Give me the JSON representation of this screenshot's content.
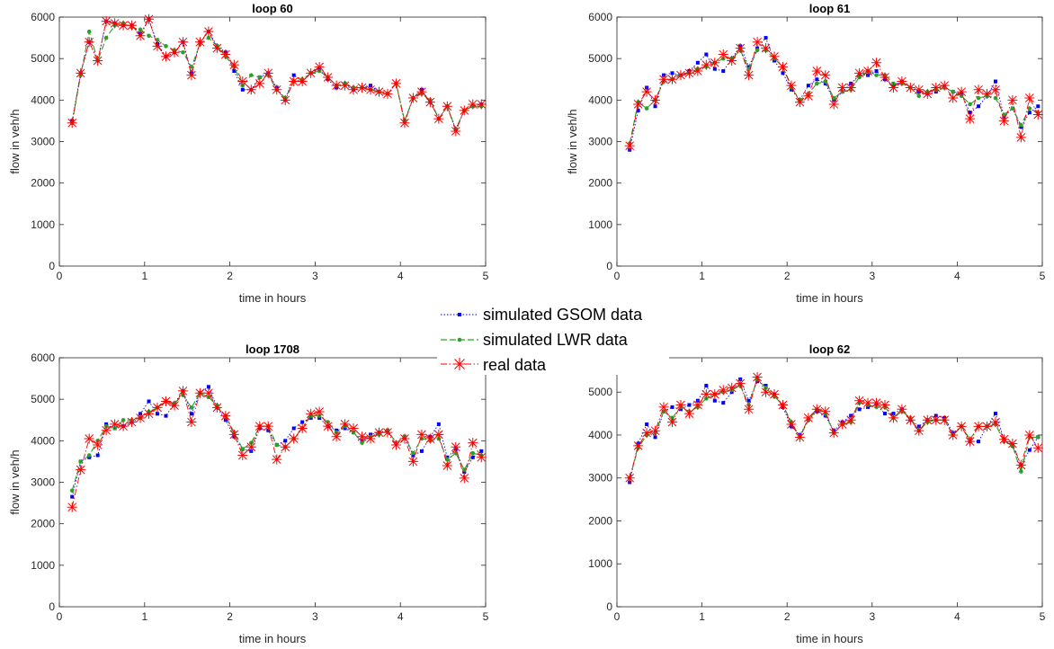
{
  "legend": {
    "entries": [
      "simulated GSOM data",
      "simulated LWR data",
      "real data"
    ]
  },
  "colors": {
    "gsom": "#0000ff",
    "lwr": "#2ca02c",
    "real": "#ff0000",
    "axis": "#262626"
  },
  "chart_data": [
    {
      "type": "line",
      "title": "loop 60",
      "xlabel": "time in hours",
      "ylabel": "flow  in veh/h",
      "xlim": [
        0,
        5
      ],
      "ylim": [
        0,
        6000
      ],
      "xticks": [
        "0",
        "1",
        "2",
        "3",
        "4",
        "5"
      ],
      "yticks": [
        "0",
        "1000",
        "2000",
        "3000",
        "4000",
        "5000",
        "6000"
      ],
      "x": [
        0.15,
        0.25,
        0.35,
        0.45,
        0.55,
        0.65,
        0.75,
        0.85,
        0.95,
        1.05,
        1.15,
        1.25,
        1.35,
        1.45,
        1.55,
        1.65,
        1.75,
        1.85,
        1.95,
        2.05,
        2.15,
        2.25,
        2.35,
        2.45,
        2.55,
        2.65,
        2.75,
        2.85,
        2.95,
        3.05,
        3.15,
        3.25,
        3.35,
        3.45,
        3.55,
        3.65,
        3.75,
        3.85,
        3.95,
        4.05,
        4.15,
        4.25,
        4.35,
        4.45,
        4.55,
        4.65,
        4.75,
        4.85,
        4.95
      ],
      "series": [
        {
          "name": "simulated GSOM data",
          "values": [
            3500,
            4650,
            5400,
            4950,
            5900,
            5850,
            5800,
            5800,
            5600,
            5950,
            5350,
            5050,
            5150,
            5400,
            4650,
            5400,
            5650,
            5300,
            5150,
            4700,
            4250,
            4250,
            4550,
            4650,
            4300,
            4000,
            4600,
            4450,
            4650,
            4750,
            4500,
            4300,
            4400,
            4250,
            4300,
            4350,
            4200,
            4150,
            4400,
            3500,
            4050,
            4250,
            3950,
            3550,
            3850,
            3300,
            3750,
            3850,
            3900
          ]
        },
        {
          "name": "simulated LWR data",
          "values": [
            3450,
            4600,
            5650,
            4950,
            5500,
            5800,
            5850,
            5750,
            5700,
            5550,
            5450,
            5300,
            5200,
            5150,
            4800,
            5350,
            5500,
            5300,
            5050,
            4800,
            4350,
            4600,
            4550,
            4600,
            4250,
            4050,
            4450,
            4500,
            4650,
            4700,
            4550,
            4350,
            4400,
            4300,
            4300,
            4250,
            4200,
            4150,
            4400,
            3500,
            4050,
            4150,
            4000,
            3550,
            3850,
            3300,
            3750,
            3850,
            3850
          ]
        },
        {
          "name": "real data",
          "values": [
            3450,
            4650,
            5400,
            4950,
            5900,
            5850,
            5800,
            5800,
            5550,
            5950,
            5300,
            5050,
            5150,
            5400,
            4600,
            5400,
            5650,
            5250,
            5100,
            4850,
            4450,
            4250,
            4400,
            4650,
            4250,
            4000,
            4450,
            4450,
            4650,
            4800,
            4550,
            4350,
            4350,
            4250,
            4300,
            4250,
            4200,
            4150,
            4400,
            3450,
            4050,
            4200,
            3950,
            3550,
            3850,
            3250,
            3750,
            3900,
            3900
          ]
        }
      ]
    },
    {
      "type": "line",
      "title": "loop 61",
      "xlabel": "time in hours",
      "ylabel": "flow  in veh/h",
      "xlim": [
        0,
        5
      ],
      "ylim": [
        0,
        6000
      ],
      "xticks": [
        "0",
        "1",
        "2",
        "3",
        "4",
        "5"
      ],
      "yticks": [
        "0",
        "1000",
        "2000",
        "3000",
        "4000",
        "5000",
        "6000"
      ],
      "x": [
        0.15,
        0.25,
        0.35,
        0.45,
        0.55,
        0.65,
        0.75,
        0.85,
        0.95,
        1.05,
        1.15,
        1.25,
        1.35,
        1.45,
        1.55,
        1.65,
        1.75,
        1.85,
        1.95,
        2.05,
        2.15,
        2.25,
        2.35,
        2.45,
        2.55,
        2.65,
        2.75,
        2.85,
        2.95,
        3.05,
        3.15,
        3.25,
        3.35,
        3.45,
        3.55,
        3.65,
        3.75,
        3.85,
        3.95,
        4.05,
        4.15,
        4.25,
        4.35,
        4.45,
        4.55,
        4.65,
        4.75,
        4.85,
        4.95
      ],
      "series": [
        {
          "name": "simulated GSOM data",
          "values": [
            2800,
            3750,
            4300,
            3850,
            4600,
            4650,
            4600,
            4700,
            4900,
            5100,
            4750,
            4700,
            5000,
            5300,
            4800,
            5250,
            5500,
            4950,
            4650,
            4250,
            4000,
            4350,
            4500,
            4400,
            4000,
            4200,
            4400,
            4600,
            4600,
            4700,
            4500,
            4350,
            4450,
            4300,
            4200,
            4150,
            4200,
            4300,
            4200,
            4150,
            3700,
            3850,
            4100,
            4450,
            3600,
            3800,
            3350,
            3700,
            3850
          ]
        },
        {
          "name": "simulated LWR data",
          "values": [
            2950,
            3950,
            3800,
            4000,
            4450,
            4500,
            4600,
            4650,
            4750,
            4800,
            4900,
            5000,
            5000,
            5200,
            4750,
            5200,
            5200,
            5000,
            4800,
            4300,
            4000,
            4150,
            4400,
            4450,
            4050,
            4200,
            4250,
            4550,
            4700,
            4600,
            4600,
            4400,
            4400,
            4300,
            4100,
            4200,
            4250,
            4300,
            4200,
            4100,
            3900,
            4050,
            4100,
            4050,
            3650,
            3800,
            3400,
            3800,
            3700
          ]
        },
        {
          "name": "real data",
          "values": [
            2900,
            3900,
            4200,
            4000,
            4500,
            4500,
            4600,
            4650,
            4700,
            4850,
            4900,
            5100,
            4950,
            5250,
            4600,
            5400,
            5250,
            5050,
            4800,
            4350,
            3950,
            4100,
            4700,
            4600,
            3900,
            4300,
            4300,
            4650,
            4700,
            4900,
            4550,
            4300,
            4450,
            4300,
            4250,
            4150,
            4300,
            4350,
            4050,
            4200,
            3550,
            4250,
            4150,
            4250,
            3500,
            4000,
            3100,
            4050,
            3650
          ]
        }
      ]
    },
    {
      "type": "line",
      "title": "loop 1708",
      "xlabel": "time in hours",
      "ylabel": "flow  in veh/h",
      "xlim": [
        0,
        5
      ],
      "ylim": [
        0,
        6000
      ],
      "xticks": [
        "0",
        "1",
        "2",
        "3",
        "4",
        "5"
      ],
      "yticks": [
        "0",
        "1000",
        "2000",
        "3000",
        "4000",
        "5000",
        "6000"
      ],
      "x": [
        0.15,
        0.25,
        0.35,
        0.45,
        0.55,
        0.65,
        0.75,
        0.85,
        0.95,
        1.05,
        1.15,
        1.25,
        1.35,
        1.45,
        1.55,
        1.65,
        1.75,
        1.85,
        1.95,
        2.05,
        2.15,
        2.25,
        2.35,
        2.45,
        2.55,
        2.65,
        2.75,
        2.85,
        2.95,
        3.05,
        3.15,
        3.25,
        3.35,
        3.45,
        3.55,
        3.65,
        3.75,
        3.85,
        3.95,
        4.05,
        4.15,
        4.25,
        4.35,
        4.45,
        4.55,
        4.65,
        4.75,
        4.85,
        4.95
      ],
      "series": [
        {
          "name": "simulated GSOM data",
          "values": [
            2650,
            3500,
            3600,
            3650,
            4400,
            4300,
            4350,
            4450,
            4650,
            4950,
            4650,
            4600,
            4900,
            5200,
            4650,
            5150,
            5300,
            4800,
            4500,
            4100,
            3800,
            3750,
            4300,
            4250,
            3900,
            4000,
            4300,
            4450,
            4550,
            4550,
            4350,
            4250,
            4300,
            4200,
            4000,
            4150,
            4200,
            4250,
            3950,
            4100,
            3650,
            3750,
            4100,
            4400,
            3600,
            3800,
            3250,
            3600,
            3750
          ]
        },
        {
          "name": "simulated LWR data",
          "values": [
            2800,
            3500,
            3650,
            4000,
            4350,
            4300,
            4500,
            4500,
            4550,
            4700,
            4800,
            4950,
            4900,
            5100,
            4800,
            5150,
            5050,
            4850,
            4600,
            4200,
            3800,
            3950,
            4350,
            4350,
            3900,
            3850,
            4050,
            4300,
            4600,
            4600,
            4450,
            4200,
            4350,
            4200,
            3950,
            4100,
            4150,
            4250,
            3950,
            4100,
            3700,
            4050,
            4000,
            4050,
            3550,
            3700,
            3300,
            3700,
            3650
          ]
        },
        {
          "name": "real data",
          "values": [
            2400,
            3300,
            4050,
            3900,
            4250,
            4400,
            4350,
            4450,
            4550,
            4650,
            4800,
            4950,
            4850,
            5200,
            4450,
            5150,
            5150,
            4800,
            4600,
            4150,
            3650,
            3850,
            4350,
            4350,
            3550,
            3850,
            4050,
            4300,
            4650,
            4700,
            4350,
            4100,
            4400,
            4300,
            4100,
            4050,
            4200,
            4200,
            3900,
            4050,
            3500,
            4150,
            4050,
            4150,
            3400,
            3850,
            3100,
            3950,
            3600
          ]
        }
      ]
    },
    {
      "type": "line",
      "title": "loop 62",
      "xlabel": "time in hours",
      "ylabel": "",
      "xlim": [
        0,
        5
      ],
      "ylim": [
        0,
        5800
      ],
      "xticks": [
        "0",
        "1",
        "2",
        "3",
        "4",
        "5"
      ],
      "yticks": [
        "0",
        "1000",
        "2000",
        "3000",
        "4000",
        "5000"
      ],
      "x": [
        0.15,
        0.25,
        0.35,
        0.45,
        0.55,
        0.65,
        0.75,
        0.85,
        0.95,
        1.05,
        1.15,
        1.25,
        1.35,
        1.45,
        1.55,
        1.65,
        1.75,
        1.85,
        1.95,
        2.05,
        2.15,
        2.25,
        2.35,
        2.45,
        2.55,
        2.65,
        2.75,
        2.85,
        2.95,
        3.05,
        3.15,
        3.25,
        3.35,
        3.45,
        3.55,
        3.65,
        3.75,
        3.85,
        3.95,
        4.05,
        4.15,
        4.25,
        4.35,
        4.45,
        4.55,
        4.65,
        4.75,
        4.85,
        4.95
      ],
      "series": [
        {
          "name": "simulated GSOM data",
          "values": [
            2900,
            3800,
            4250,
            3950,
            4550,
            4650,
            4600,
            4700,
            4800,
            5150,
            4800,
            4750,
            5000,
            5300,
            4800,
            5250,
            5150,
            4950,
            4650,
            4200,
            4000,
            4350,
            4550,
            4450,
            4100,
            4300,
            4450,
            4600,
            4650,
            4700,
            4500,
            4500,
            4600,
            4350,
            4200,
            4350,
            4450,
            4400,
            4050,
            4200,
            3850,
            3850,
            4200,
            4500,
            3900,
            3750,
            3300,
            3650,
            3950
          ]
        },
        {
          "name": "simulated LWR data",
          "values": [
            3000,
            3700,
            4000,
            4050,
            4550,
            4400,
            4650,
            4550,
            4650,
            4850,
            4950,
            5000,
            5050,
            5150,
            4700,
            5300,
            5100,
            4900,
            4700,
            4300,
            3950,
            4350,
            4600,
            4500,
            4050,
            4250,
            4300,
            4750,
            4700,
            4650,
            4650,
            4400,
            4550,
            4400,
            4100,
            4300,
            4350,
            4350,
            4000,
            4200,
            3900,
            4200,
            4200,
            4250,
            3850,
            3750,
            3150,
            3950,
            3950
          ]
        },
        {
          "name": "real data",
          "values": [
            3000,
            3750,
            4050,
            4100,
            4650,
            4300,
            4700,
            4500,
            4700,
            4950,
            4950,
            5050,
            5100,
            5200,
            4600,
            5350,
            5000,
            4950,
            4700,
            4250,
            3950,
            4400,
            4600,
            4550,
            4050,
            4250,
            4350,
            4800,
            4750,
            4750,
            4700,
            4400,
            4600,
            4350,
            4100,
            4350,
            4350,
            4350,
            4000,
            4200,
            3850,
            4200,
            4200,
            4300,
            3900,
            3800,
            3300,
            4000,
            3700
          ]
        }
      ]
    }
  ]
}
